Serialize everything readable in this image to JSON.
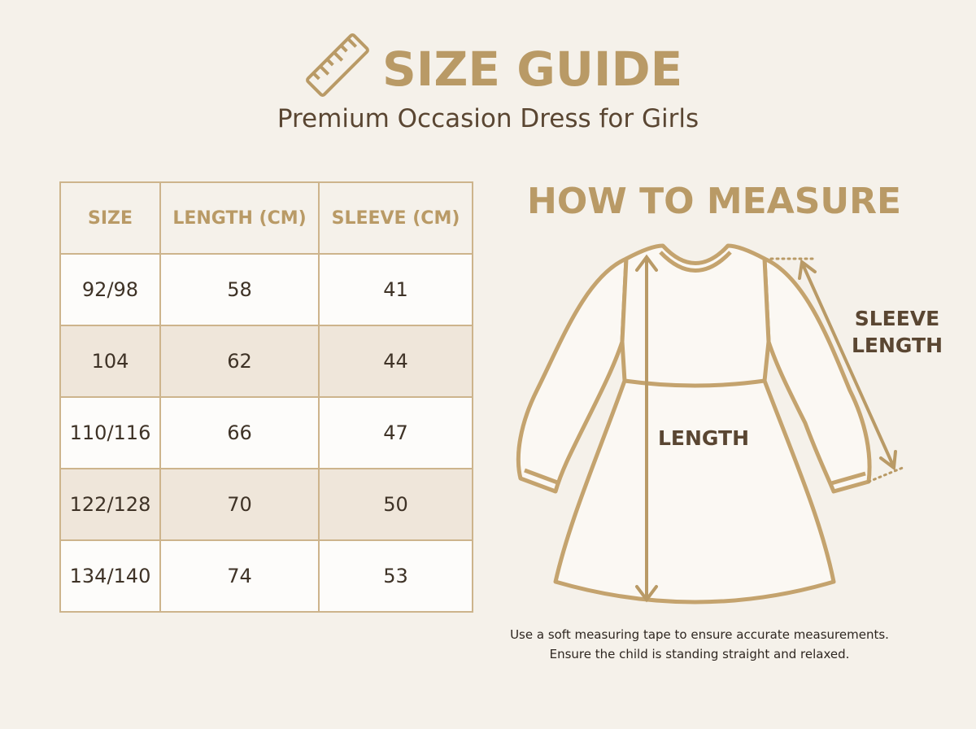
{
  "header": {
    "title": "SIZE GUIDE",
    "subtitle": "Premium Occasion Dress for Girls"
  },
  "table": {
    "columns": [
      "SIZE",
      "LENGTH (CM)",
      "SLEEVE (CM)"
    ],
    "rows": [
      [
        "92/98",
        "58",
        "41"
      ],
      [
        "104",
        "62",
        "44"
      ],
      [
        "110/116",
        "66",
        "47"
      ],
      [
        "122/128",
        "70",
        "50"
      ],
      [
        "134/140",
        "74",
        "53"
      ]
    ]
  },
  "measure": {
    "title": "HOW TO MEASURE",
    "length_label": "LENGTH",
    "sleeve_label": [
      "SLEEVE",
      "LENGTH"
    ],
    "note": [
      "Use a soft measuring tape to ensure accurate measurements.",
      "Ensure the child is standing straight and relaxed."
    ]
  }
}
